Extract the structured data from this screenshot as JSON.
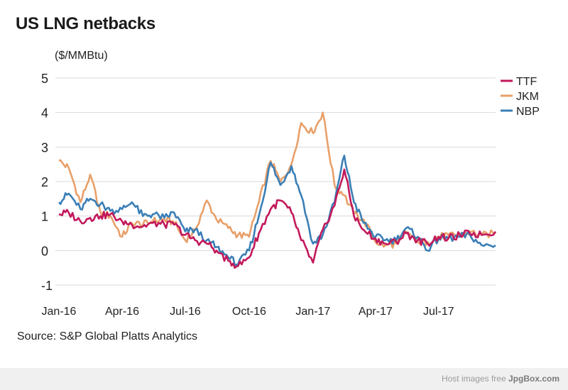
{
  "title": "US LNG netbacks",
  "unit": "($/MMBtu)",
  "source": "Source: S&P Global Platts Analytics",
  "watermark": {
    "text": "Host images free",
    "brand": "JpgBox.com"
  },
  "chart_data": {
    "type": "line",
    "title": "US LNG netbacks",
    "ylabel": "($/MMBtu)",
    "ylim": [
      -1,
      5
    ],
    "yticks": [
      5,
      4,
      3,
      2,
      1,
      0,
      -1
    ],
    "xlim": [
      "2016-01-01",
      "2017-09-21"
    ],
    "xticks": [
      {
        "label": "Jan-16",
        "date": "2016-01-01"
      },
      {
        "label": "Apr-16",
        "date": "2016-04-01"
      },
      {
        "label": "Jul-16",
        "date": "2016-07-01"
      },
      {
        "label": "Oct-16",
        "date": "2016-10-01"
      },
      {
        "label": "Jan-17",
        "date": "2017-01-01"
      },
      {
        "label": "Apr-17",
        "date": "2017-04-01"
      },
      {
        "label": "Jul-17",
        "date": "2017-07-01"
      }
    ],
    "grid": "horizontal",
    "legend": "top-right",
    "colors": {
      "TTF": "#c2185b",
      "JKM": "#e8a06a",
      "NBP": "#3b7fb6"
    },
    "series": [
      {
        "name": "TTF",
        "x": [
          "2016-01-01",
          "2016-01-15",
          "2016-02-01",
          "2016-02-15",
          "2016-03-01",
          "2016-03-15",
          "2016-04-01",
          "2016-04-15",
          "2016-05-01",
          "2016-05-15",
          "2016-06-01",
          "2016-06-15",
          "2016-07-01",
          "2016-07-15",
          "2016-08-01",
          "2016-08-15",
          "2016-09-01",
          "2016-09-15",
          "2016-10-01",
          "2016-10-15",
          "2016-11-01",
          "2016-11-15",
          "2016-12-01",
          "2016-12-15",
          "2017-01-01",
          "2017-01-15",
          "2017-02-01",
          "2017-02-15",
          "2017-03-01",
          "2017-03-15",
          "2017-04-01",
          "2017-04-15",
          "2017-05-01",
          "2017-05-15",
          "2017-06-01",
          "2017-06-15",
          "2017-07-01",
          "2017-07-15",
          "2017-08-01",
          "2017-08-15",
          "2017-09-01",
          "2017-09-21"
        ],
        "values": [
          1.05,
          1.1,
          0.85,
          0.95,
          1.0,
          1.05,
          0.85,
          0.75,
          0.7,
          0.8,
          0.75,
          0.75,
          0.45,
          0.3,
          0.2,
          0.0,
          -0.3,
          -0.45,
          -0.2,
          0.5,
          1.2,
          1.45,
          1.1,
          0.3,
          -0.35,
          0.6,
          1.3,
          2.35,
          1.0,
          0.6,
          0.35,
          0.2,
          0.25,
          0.5,
          0.3,
          0.2,
          0.4,
          0.35,
          0.45,
          0.5,
          0.45,
          0.55
        ]
      },
      {
        "name": "JKM",
        "x": [
          "2016-01-01",
          "2016-01-15",
          "2016-02-01",
          "2016-02-15",
          "2016-03-01",
          "2016-03-15",
          "2016-04-01",
          "2016-04-15",
          "2016-05-01",
          "2016-05-15",
          "2016-06-01",
          "2016-06-15",
          "2016-07-01",
          "2016-07-15",
          "2016-08-01",
          "2016-08-15",
          "2016-09-01",
          "2016-09-15",
          "2016-10-01",
          "2016-10-15",
          "2016-11-01",
          "2016-11-15",
          "2016-12-01",
          "2016-12-15",
          "2017-01-01",
          "2017-01-15",
          "2017-02-01",
          "2017-02-15",
          "2017-03-01",
          "2017-03-15",
          "2017-04-01",
          "2017-04-15",
          "2017-05-01",
          "2017-05-15",
          "2017-06-01",
          "2017-06-15",
          "2017-07-01",
          "2017-07-15",
          "2017-08-01",
          "2017-08-15",
          "2017-09-01",
          "2017-09-21"
        ],
        "values": [
          2.6,
          2.4,
          1.4,
          2.2,
          1.1,
          1.0,
          0.4,
          0.8,
          0.75,
          0.85,
          0.9,
          0.8,
          0.3,
          0.6,
          1.45,
          0.9,
          0.65,
          0.45,
          0.4,
          1.4,
          2.6,
          2.0,
          2.5,
          3.7,
          3.4,
          4.0,
          1.9,
          1.6,
          1.05,
          0.9,
          0.25,
          0.15,
          0.2,
          0.55,
          0.25,
          0.25,
          0.4,
          0.45,
          0.45,
          0.55,
          0.45,
          0.5
        ]
      },
      {
        "name": "NBP",
        "x": [
          "2016-01-01",
          "2016-01-15",
          "2016-02-01",
          "2016-02-15",
          "2016-03-01",
          "2016-03-15",
          "2016-04-01",
          "2016-04-15",
          "2016-05-01",
          "2016-05-15",
          "2016-06-01",
          "2016-06-15",
          "2016-07-01",
          "2016-07-15",
          "2016-08-01",
          "2016-08-15",
          "2016-09-01",
          "2016-09-15",
          "2016-10-01",
          "2016-10-15",
          "2016-11-01",
          "2016-11-15",
          "2016-12-01",
          "2016-12-15",
          "2017-01-01",
          "2017-01-15",
          "2017-02-01",
          "2017-02-15",
          "2017-03-01",
          "2017-03-15",
          "2017-04-01",
          "2017-04-15",
          "2017-05-01",
          "2017-05-15",
          "2017-06-01",
          "2017-06-15",
          "2017-07-01",
          "2017-07-15",
          "2017-08-01",
          "2017-08-15",
          "2017-09-01",
          "2017-09-21"
        ],
        "values": [
          1.4,
          1.65,
          1.2,
          1.5,
          1.35,
          1.15,
          1.2,
          1.4,
          1.0,
          1.05,
          0.95,
          1.1,
          0.55,
          0.6,
          0.3,
          0.1,
          -0.2,
          -0.4,
          0.0,
          1.0,
          2.55,
          1.9,
          2.45,
          1.6,
          0.2,
          0.45,
          1.4,
          2.75,
          1.4,
          0.8,
          0.4,
          0.3,
          0.3,
          0.65,
          0.4,
          0.0,
          0.35,
          0.35,
          0.4,
          0.45,
          0.15,
          0.15
        ]
      }
    ]
  }
}
